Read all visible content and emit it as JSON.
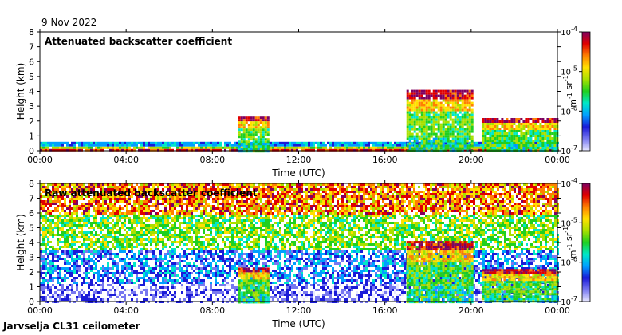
{
  "date": "9 Nov 2022",
  "footer": "Jarvselja CL31 ceilometer",
  "colors": {
    "background": "#ffffff",
    "colormap": [
      "#e8e8ff",
      "#7878f0",
      "#1a1ad8",
      "#00a0ff",
      "#00e8c8",
      "#20d020",
      "#a8e000",
      "#ffe000",
      "#ff8000",
      "#e00000",
      "#800060"
    ]
  },
  "chart_data": [
    {
      "type": "heatmap",
      "title": "Attenuated backscatter coefficient",
      "xlabel": "Time (UTC)",
      "ylabel": "Height (km)",
      "xticks": [
        "00:00",
        "04:00",
        "08:00",
        "12:00",
        "16:00",
        "20:00",
        "00:00"
      ],
      "xlim_hours": [
        0,
        24
      ],
      "yticks": [
        "0",
        "1",
        "2",
        "3",
        "4",
        "5",
        "6",
        "7",
        "8"
      ],
      "ylim_km": [
        0,
        8
      ],
      "colorbar": {
        "ticks": [
          "10-7",
          "10-6",
          "10-5",
          "10-4"
        ],
        "unit": "m-1 sr-1",
        "scale": "log"
      },
      "features": [
        {
          "name": "boundary-layer",
          "start_h": 0,
          "end_h": 24,
          "top_km": 0.6
        },
        {
          "name": "cloud-a",
          "start_h": 9.2,
          "end_h": 10.6,
          "top_km": 2.3
        },
        {
          "name": "cloud-b",
          "start_h": 17.0,
          "end_h": 20.0,
          "top_km": 4.1
        },
        {
          "name": "cloud-c",
          "start_h": 20.5,
          "end_h": 24,
          "top_km": 2.2
        }
      ]
    },
    {
      "type": "heatmap",
      "title": "Raw attenuated backscatter coefficient",
      "xlabel": "Time (UTC)",
      "ylabel": "Height (km)",
      "xticks": [
        "00:00",
        "04:00",
        "08:00",
        "12:00",
        "16:00",
        "20:00",
        "00:00"
      ],
      "xlim_hours": [
        0,
        24
      ],
      "yticks": [
        "0",
        "1",
        "2",
        "3",
        "4",
        "5",
        "6",
        "7",
        "8"
      ],
      "ylim_km": [
        0,
        8
      ],
      "colorbar": {
        "ticks": [
          "10-7",
          "10-6",
          "10-5",
          "10-4"
        ],
        "unit": "m-1 sr-1",
        "scale": "log"
      },
      "features": [
        {
          "name": "noise-field",
          "start_h": 0,
          "end_h": 24,
          "top_km": 8
        },
        {
          "name": "cloud-a",
          "start_h": 9.2,
          "end_h": 10.6,
          "top_km": 2.3
        },
        {
          "name": "cloud-b",
          "start_h": 17.0,
          "end_h": 20.0,
          "top_km": 4.1
        },
        {
          "name": "cloud-c",
          "start_h": 20.5,
          "end_h": 24,
          "top_km": 2.2
        }
      ]
    }
  ]
}
